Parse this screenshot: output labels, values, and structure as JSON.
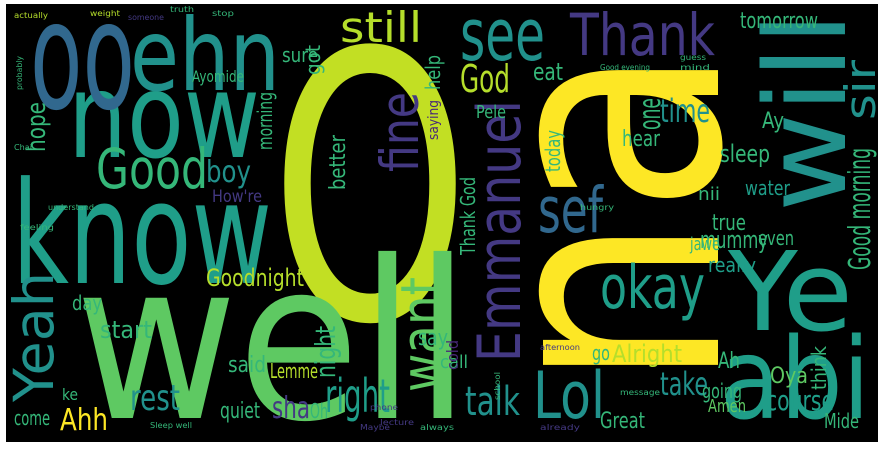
{
  "words": [
    "O",
    "na",
    "well",
    "know",
    "now",
    "oo",
    "ehn",
    "Good",
    "Yeah",
    "will",
    "Ye",
    "abi",
    "see",
    "Thank",
    "fine",
    "Emmanuel",
    "sef",
    "okay",
    "want",
    "Lol",
    "still",
    "God",
    "time",
    "one",
    "sir",
    "Good morning",
    "mummy",
    "boy",
    "How're",
    "Goodnight",
    "right",
    "rest",
    "Ahh",
    "talk",
    "sha",
    "Oh",
    "take",
    "Amen",
    "course",
    "night",
    "say",
    "Alright",
    "Oya",
    "Great",
    "start",
    "day",
    "quiet",
    "come",
    "said",
    "Lemme",
    "hope",
    "sleep",
    "water",
    "tomorrow",
    "eat",
    "Pele",
    "help",
    "got",
    "sure",
    "morning",
    "better",
    "Thank God",
    "today",
    "hear",
    "true",
    "even",
    "jawe",
    "really",
    "nii",
    "Ay",
    "go",
    "Ah",
    "going",
    "think",
    "Mide",
    "call",
    "cold",
    "ke",
    "Ayomide",
    "saying",
    "actually",
    "weight",
    "someone",
    "truth",
    "stop",
    "mind",
    "Good evening",
    "guess",
    "probably",
    "Chai",
    "understand",
    "feeling",
    "phone",
    "lecture",
    "school",
    "afternoon",
    "message",
    "Maybe",
    "always",
    "already",
    "Sleep well",
    "hungry"
  ]
}
